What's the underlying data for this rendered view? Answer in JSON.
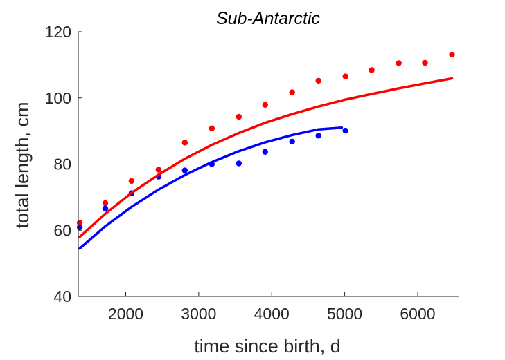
{
  "chart_data": {
    "type": "scatter",
    "title": "Sub-Antarctic",
    "xlabel": "time since birth, d",
    "ylabel": "total length, cm",
    "xlim": [
      1350,
      6560
    ],
    "ylim": [
      40,
      120
    ],
    "xticks": [
      2000,
      3000,
      4000,
      5000,
      6000
    ],
    "yticks": [
      40,
      60,
      80,
      100,
      120
    ],
    "grid": false,
    "legend": "none",
    "series": [
      {
        "color": "#ff0000",
        "kind": "points",
        "x": [
          1370,
          1720,
          2080,
          2450,
          2810,
          3180,
          3550,
          3910,
          4280,
          4640,
          5010,
          5370,
          5740,
          6100,
          6470
        ],
        "y": [
          62.3,
          68.2,
          74.9,
          78.3,
          86.5,
          90.8,
          94.3,
          97.9,
          101.7,
          105.2,
          106.5,
          108.4,
          110.5,
          110.6,
          113.1
        ]
      },
      {
        "color": "#0000ff",
        "kind": "points",
        "x": [
          1370,
          1720,
          2080,
          2450,
          2810,
          3180,
          3550,
          3910,
          4280,
          4640,
          5010
        ],
        "y": [
          60.9,
          66.6,
          71.2,
          76.2,
          78.1,
          80.0,
          80.2,
          83.7,
          86.8,
          88.6,
          90.1
        ]
      },
      {
        "color": "#ff0000",
        "kind": "line",
        "x": [
          1370,
          1720,
          2080,
          2450,
          2810,
          3180,
          3550,
          3910,
          4280,
          4640,
          5010,
          5370,
          5740,
          6100,
          6470
        ],
        "y": [
          58.0,
          65.0,
          71.3,
          76.8,
          81.6,
          85.8,
          89.4,
          92.5,
          95.1,
          97.4,
          99.5,
          101.2,
          102.9,
          104.4,
          105.9
        ]
      },
      {
        "color": "#0000ff",
        "kind": "line",
        "x": [
          1370,
          1720,
          2080,
          2450,
          2810,
          3180,
          3550,
          3910,
          4280,
          4640,
          4960
        ],
        "y": [
          54.5,
          61.2,
          67.1,
          72.3,
          76.7,
          80.6,
          83.9,
          86.6,
          88.8,
          90.5,
          91.0
        ]
      }
    ]
  }
}
